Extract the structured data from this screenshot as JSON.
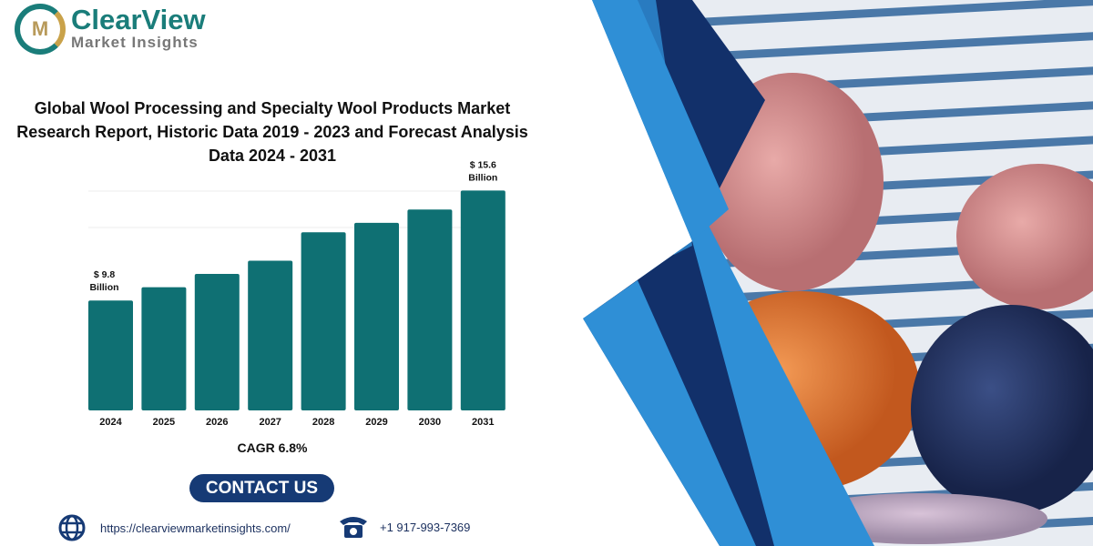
{
  "brand": {
    "name": "ClearView",
    "tagline": "Market Insights"
  },
  "title": "Global Wool Processing and Specialty Wool Products Market Research Report, Historic Data 2019 - 2023 and Forecast Analysis Data 2024 - 2031",
  "chart_data": {
    "type": "bar",
    "title": "Global Wool Processing and Specialty Wool Products Market",
    "categories": [
      "2024",
      "2025",
      "2026",
      "2027",
      "2028",
      "2029",
      "2030",
      "2031"
    ],
    "values": [
      9.8,
      10.5,
      11.2,
      11.9,
      13.4,
      13.9,
      14.6,
      15.6
    ],
    "unit": "USD Billion",
    "ylim": [
      4,
      16.1
    ],
    "grid": true,
    "annotations": [
      {
        "category": "2024",
        "line1": "$ 9.8",
        "line2": "Billion"
      },
      {
        "category": "2031",
        "line1": "$ 15.6",
        "line2": "Billion"
      }
    ],
    "bar_color": "#0f7073"
  },
  "cagr": "CAGR 6.8%",
  "contact_label": "CONTACT US",
  "website": "https://clearviewmarketinsights.com/",
  "phone": "+1 917-993-7369"
}
